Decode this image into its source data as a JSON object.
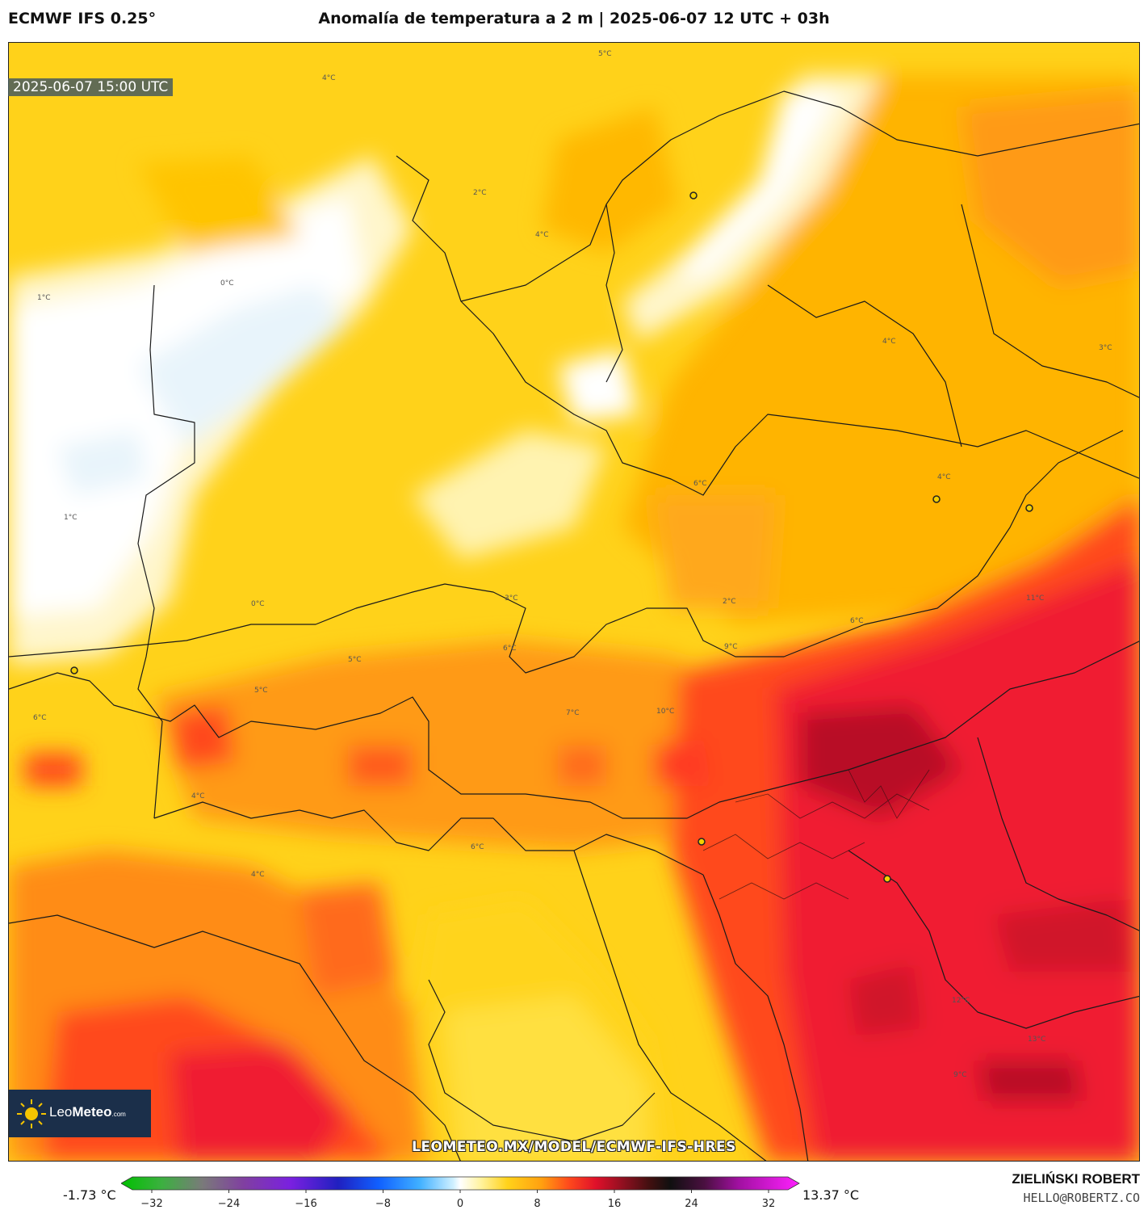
{
  "header": {
    "model": "ECMWF IFS 0.25°",
    "title": "Anomalía de temperatura a 2 m | 2025-06-07 12 UTC + 03h"
  },
  "map": {
    "valid_time": "2025-06-07 15:00 UTC",
    "url": "LEOMETEO.MX/MODEL/ECMWF-IFS-HRES",
    "contour_labels": [
      "0°C",
      "1°C",
      "2°C",
      "3°C",
      "4°C",
      "5°C",
      "6°C",
      "7°C",
      "8°C",
      "9°C",
      "10°C",
      "11°C",
      "12°C",
      "13°C"
    ]
  },
  "logo": {
    "name_light": "Leo",
    "name_bold": "Meteo",
    "domain": ".com"
  },
  "colorbar": {
    "min_label": "-1.73 °C",
    "max_label": "13.37 °C",
    "ticks": [
      "−32",
      "−24",
      "−16",
      "−8",
      "0",
      "8",
      "16",
      "24",
      "32"
    ]
  },
  "credit": {
    "name": "ZIELIŃSKI ROBERT",
    "email": "HELLO@ROBERTZ.CO"
  },
  "colors": {
    "anomaly_0": "#ffffff",
    "anomaly_1": "#fff5c4",
    "anomaly_2": "#ffe45a",
    "anomaly_4": "#ffc200",
    "anomaly_6": "#ff8a14",
    "anomaly_8": "#ff4d1c",
    "anomaly_10": "#f0142c",
    "anomaly_12": "#c8102a",
    "anomaly_13": "#9a0f1e"
  }
}
